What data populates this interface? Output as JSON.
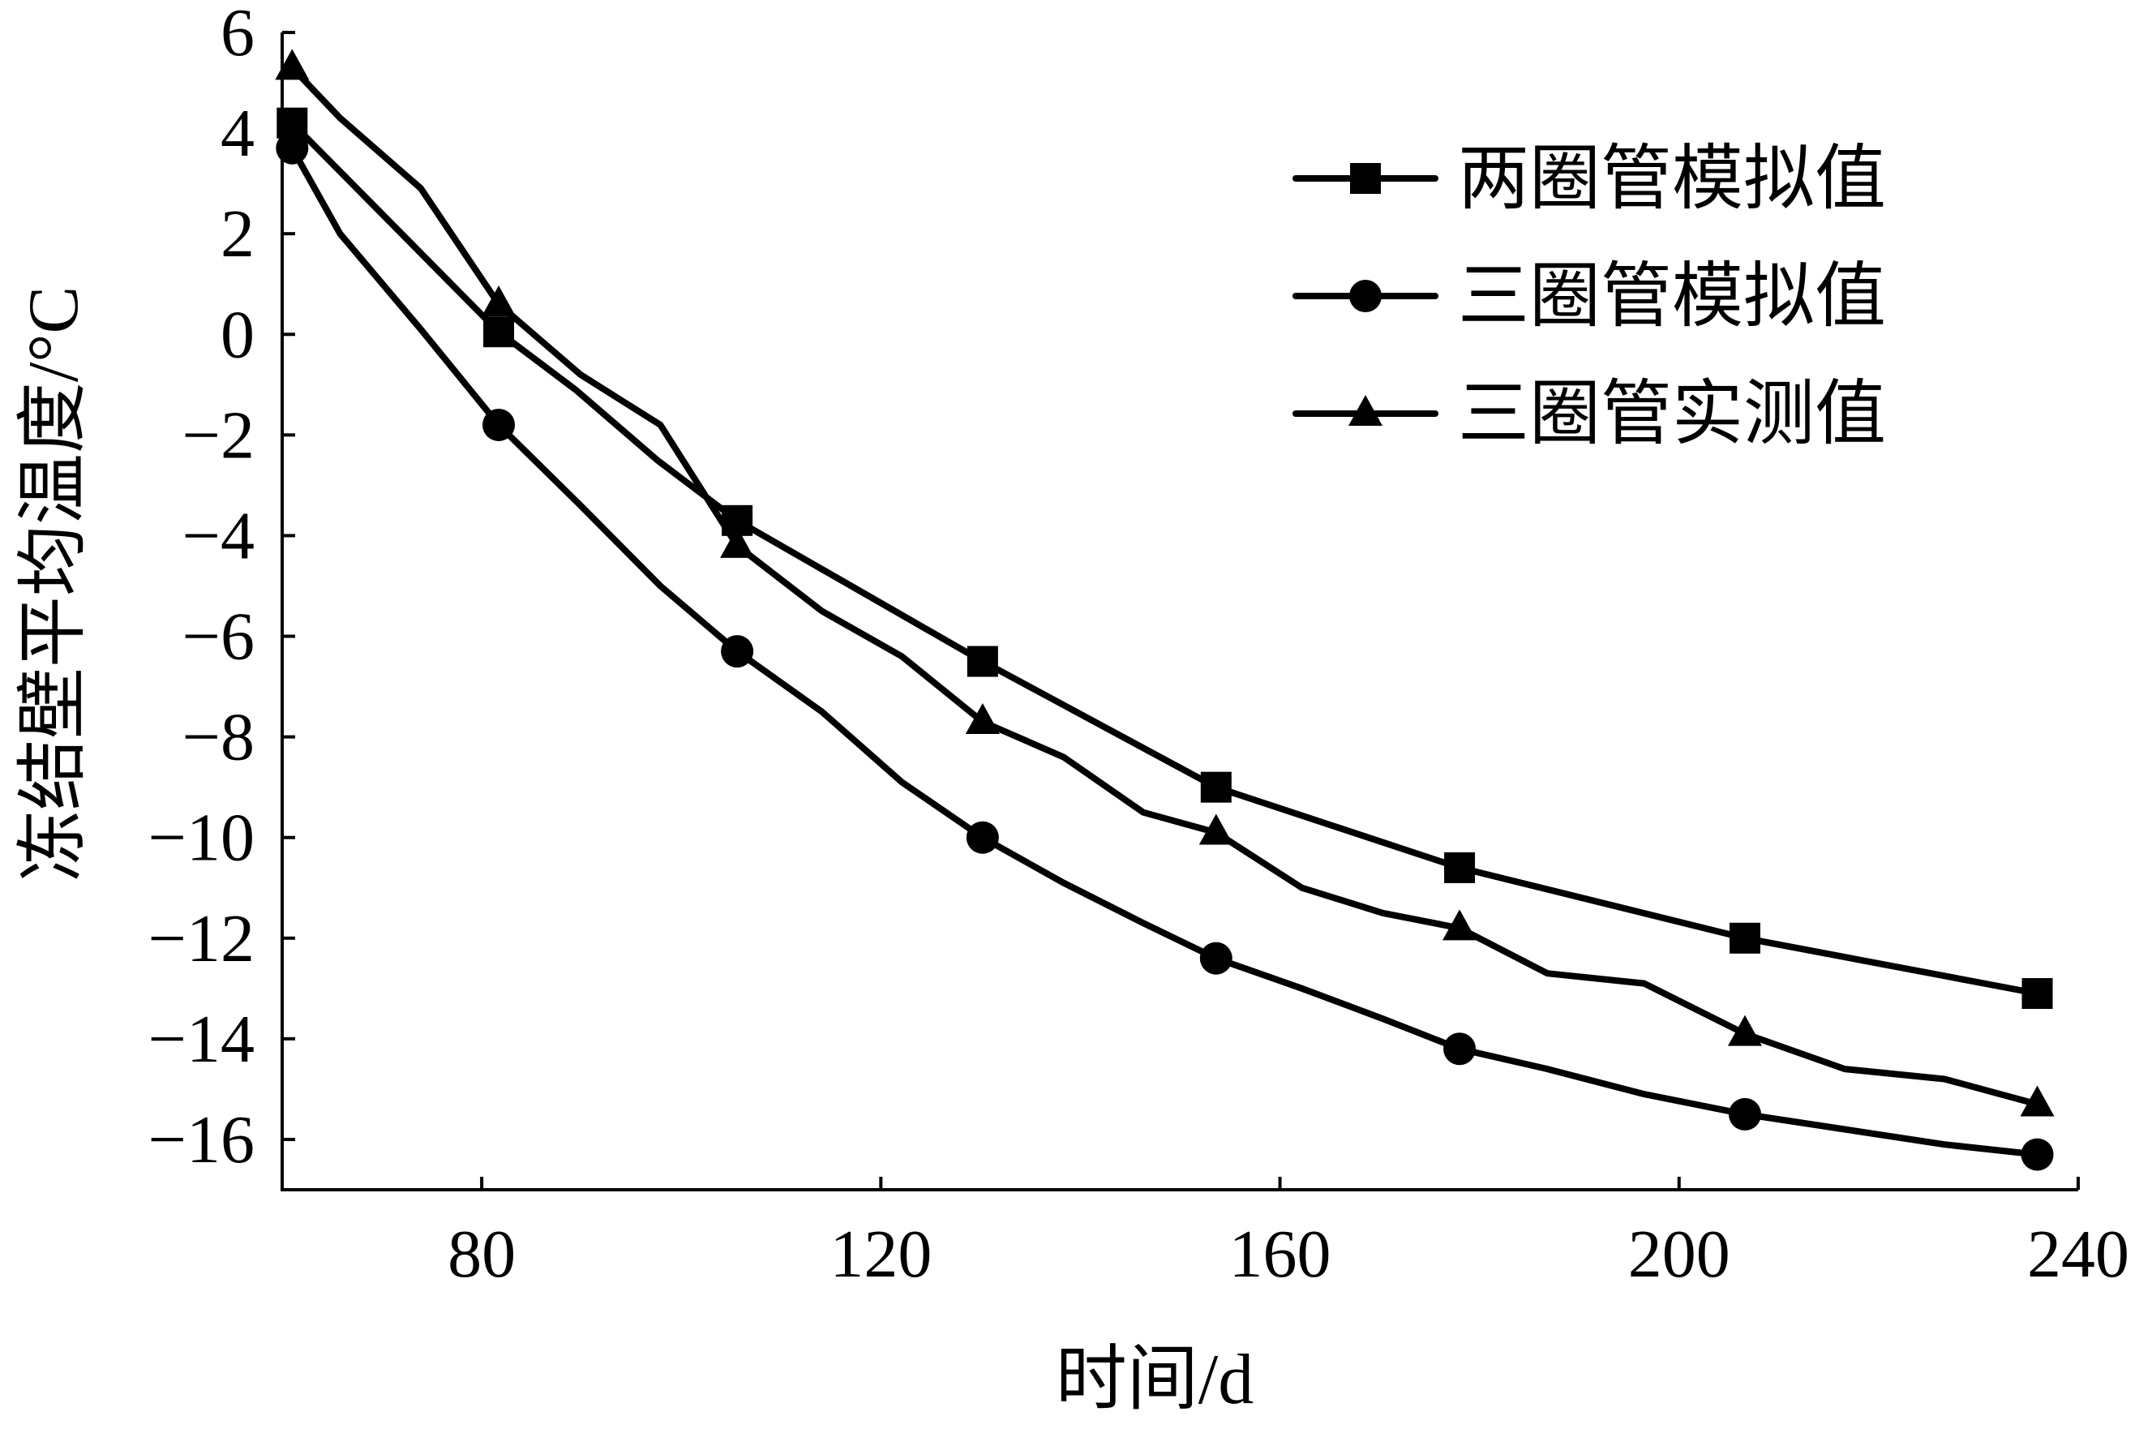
{
  "chart_data": {
    "type": "line",
    "xlabel": "时间/d",
    "ylabel": "冻结壁平均温度/°C",
    "xlim": [
      60,
      240
    ],
    "ylim": [
      -17,
      6
    ],
    "xticks": [
      80,
      120,
      160,
      200,
      240
    ],
    "yticks": [
      6,
      4,
      2,
      0,
      -2,
      -4,
      -6,
      -8,
      -10,
      -12,
      -14,
      -16
    ],
    "ytick_labels": [
      "6",
      "4",
      "2",
      "0",
      "−2",
      "−4",
      "−6",
      "−8",
      "−10",
      "−12",
      "−14",
      "−16"
    ],
    "legend_position": "top-right",
    "grid": false,
    "series": [
      {
        "name": "两圈管模拟值",
        "marker": "square",
        "x": [
          61,
          81.7,
          89.4,
          97.6,
          105.6,
          130.2,
          153.6,
          178.0,
          206.6,
          235.9
        ],
        "y": [
          4.2,
          0.05,
          -1.1,
          -2.5,
          -3.7,
          -6.5,
          -9.0,
          -10.6,
          -12.0,
          -13.1
        ],
        "markers": [
          [
            61,
            4.2
          ],
          [
            81.7,
            0.05
          ],
          [
            105.6,
            -3.7
          ],
          [
            130.2,
            -6.5
          ],
          [
            153.6,
            -9.0
          ],
          [
            178.0,
            -10.6
          ],
          [
            206.6,
            -12.0
          ],
          [
            235.9,
            -13.1
          ]
        ]
      },
      {
        "name": "三圈管模拟值",
        "marker": "circle",
        "x": [
          61,
          65.8,
          73.9,
          81.7,
          89.9,
          97.9,
          105.6,
          114.1,
          122.1,
          130.2,
          138.3,
          146.3,
          153.6,
          162.2,
          170.3,
          178.0,
          186.8,
          196.5,
          206.6,
          216.6,
          226.6,
          235.9
        ],
        "y": [
          3.7,
          2.0,
          0.1,
          -1.8,
          -3.4,
          -5.0,
          -6.3,
          -7.5,
          -8.9,
          -10.0,
          -10.9,
          -11.7,
          -12.4,
          -13.0,
          -13.6,
          -14.2,
          -14.6,
          -15.1,
          -15.5,
          -15.8,
          -16.1,
          -16.3
        ],
        "markers": [
          [
            61,
            3.7
          ],
          [
            81.7,
            -1.8
          ],
          [
            105.6,
            -6.3
          ],
          [
            130.2,
            -10.0
          ],
          [
            153.6,
            -12.4
          ],
          [
            178.0,
            -14.2
          ],
          [
            206.6,
            -15.5
          ],
          [
            235.9,
            -16.3
          ]
        ]
      },
      {
        "name": "三圈管实测值",
        "marker": "triangle",
        "x": [
          61,
          65.8,
          73.9,
          81.7,
          89.9,
          97.9,
          105.6,
          114.1,
          122.1,
          130.2,
          138.3,
          146.3,
          153.6,
          162.2,
          170.3,
          178.0,
          186.8,
          196.5,
          206.6,
          216.6,
          226.6,
          235.9
        ],
        "y": [
          5.3,
          4.3,
          2.9,
          0.6,
          -0.8,
          -1.8,
          -4.2,
          -5.5,
          -6.4,
          -7.7,
          -8.4,
          -9.5,
          -9.9,
          -11.0,
          -11.5,
          -11.8,
          -12.7,
          -12.9,
          -13.9,
          -14.6,
          -14.8,
          -15.3
        ],
        "markers": [
          [
            61,
            5.3
          ],
          [
            81.7,
            0.6
          ],
          [
            105.6,
            -4.2
          ],
          [
            130.2,
            -7.7
          ],
          [
            153.6,
            -9.9
          ],
          [
            178.0,
            -11.8
          ],
          [
            206.6,
            -13.9
          ],
          [
            235.9,
            -15.3
          ]
        ]
      }
    ]
  }
}
